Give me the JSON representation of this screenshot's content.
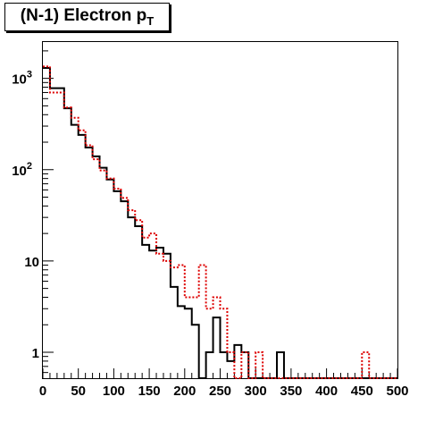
{
  "title": {
    "main": "(N-1) Electron p",
    "subscript": "T"
  },
  "chart_data": {
    "type": "line",
    "title": "(N-1) Electron pT",
    "xlabel": "",
    "ylabel": "",
    "xlim": [
      0,
      500
    ],
    "ylim": [
      0.52,
      2500
    ],
    "yscale": "log",
    "grid": false,
    "bin_width": 10,
    "x_ticks": [
      "0",
      "50",
      "100",
      "150",
      "200",
      "250",
      "300",
      "350",
      "400",
      "450",
      "500"
    ],
    "y_ticks": [
      {
        "value": 1,
        "base": "1",
        "exp": ""
      },
      {
        "value": 10,
        "base": "10",
        "exp": ""
      },
      {
        "value": 100,
        "base": "10",
        "exp": "2"
      },
      {
        "value": 1000,
        "base": "10",
        "exp": "3"
      }
    ],
    "series": [
      {
        "color": "#000000",
        "style": "solid",
        "bin_edges_start": 0,
        "values": [
          1300,
          780,
          780,
          470,
          310,
          240,
          175,
          140,
          105,
          78,
          58,
          45,
          30,
          24,
          15,
          13,
          14,
          12,
          5.2,
          3.2,
          3.0,
          2.0,
          0,
          1.0,
          2.4,
          1.0,
          0.8,
          1.2,
          1.0,
          0,
          0,
          0,
          0,
          1.0,
          0,
          0,
          0,
          0,
          0,
          0,
          0,
          0,
          0,
          0,
          0,
          0,
          0,
          0,
          0,
          0
        ]
      },
      {
        "color": "#dd0000",
        "style": "dotted",
        "bin_edges_start": 0,
        "values": [
          1350,
          700,
          700,
          480,
          370,
          270,
          185,
          130,
          98,
          80,
          62,
          49,
          36,
          28,
          18,
          20,
          12,
          10,
          8.5,
          9.0,
          4.0,
          4.0,
          9.0,
          3.0,
          4.0,
          3.0,
          1.0,
          0,
          1.0,
          0,
          1.0,
          0,
          0,
          0,
          0,
          0,
          0,
          0,
          0,
          0,
          0,
          0,
          0,
          0,
          0,
          1.0,
          0,
          0,
          0,
          0
        ]
      }
    ]
  }
}
